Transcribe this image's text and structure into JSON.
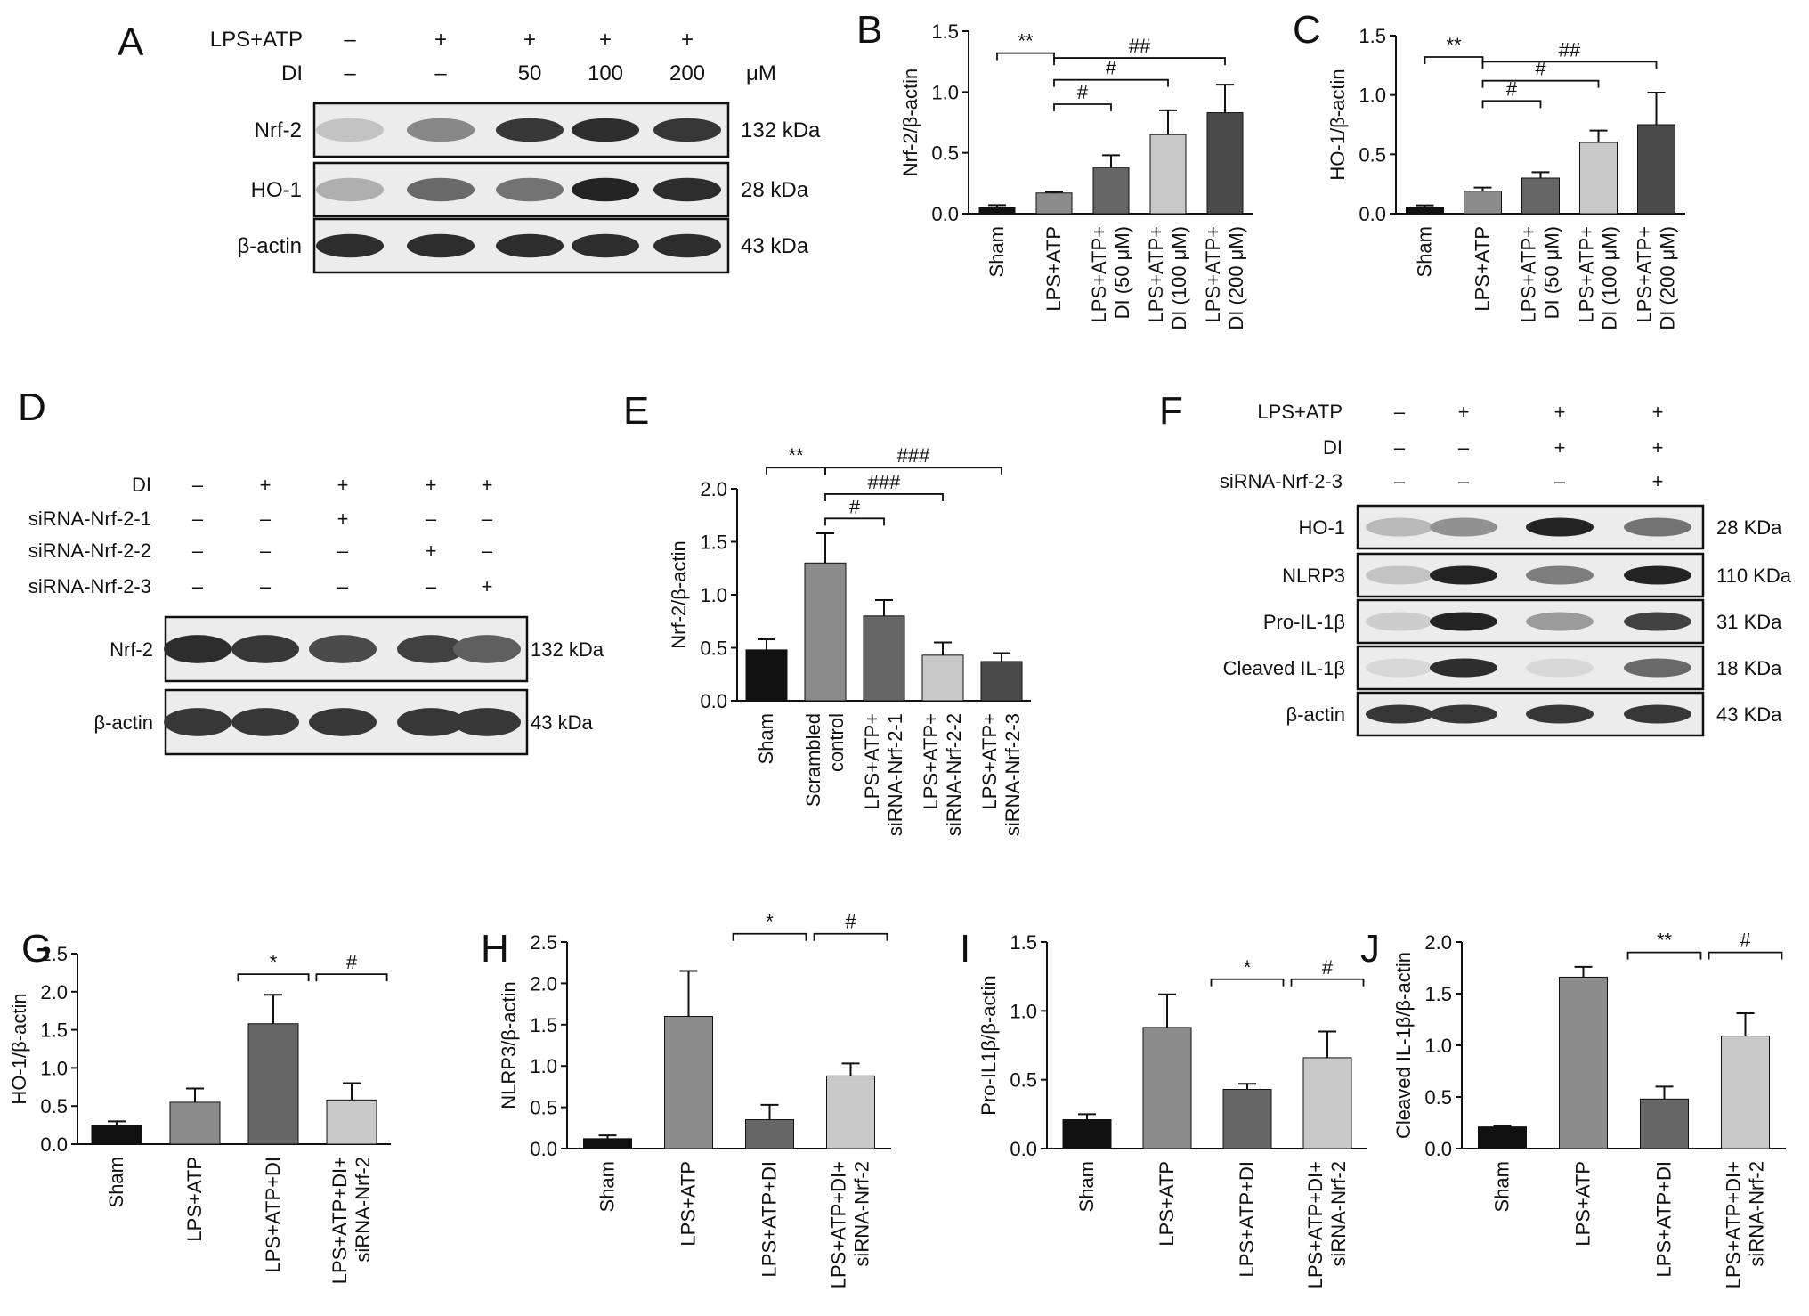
{
  "colors": {
    "black": "#111111",
    "gray1": "#8c8c8c",
    "gray2": "#666666",
    "gray3": "#c8c8c8",
    "gray4": "#4a4a4a"
  },
  "panelA": {
    "letter": "A",
    "header_rows": [
      {
        "label": "LPS+ATP",
        "marks": [
          "–",
          "+",
          "+",
          "+",
          "+"
        ]
      },
      {
        "label": "DI",
        "marks": [
          "–",
          "–",
          "50",
          "100",
          "200"
        ],
        "unit": "μM"
      }
    ],
    "blots": [
      {
        "label": "Nrf-2",
        "kda": "132 kDa",
        "intensity": [
          0.15,
          0.45,
          0.85,
          0.9,
          0.85
        ]
      },
      {
        "label": "HO-1",
        "kda": "28 kDa",
        "intensity": [
          0.25,
          0.6,
          0.55,
          0.95,
          0.9
        ]
      },
      {
        "label": "β-actin",
        "kda": "43 kDa",
        "intensity": [
          0.9,
          0.9,
          0.9,
          0.9,
          0.9
        ]
      }
    ]
  },
  "panelD": {
    "letter": "D",
    "header_rows": [
      {
        "label": "DI",
        "marks": [
          "–",
          "+",
          "+",
          "+",
          "+"
        ]
      },
      {
        "label": "siRNA-Nrf-2-1",
        "marks": [
          "–",
          "–",
          "+",
          "–",
          "–"
        ]
      },
      {
        "label": "siRNA-Nrf-2-2",
        "marks": [
          "–",
          "–",
          "–",
          "+",
          "–"
        ]
      },
      {
        "label": "siRNA-Nrf-2-3",
        "marks": [
          "–",
          "–",
          "–",
          "–",
          "+"
        ]
      }
    ],
    "blots": [
      {
        "label": "Nrf-2",
        "kda": "132 kDa",
        "intensity": [
          0.9,
          0.85,
          0.75,
          0.8,
          0.65
        ]
      },
      {
        "label": "β-actin",
        "kda": "43 kDa",
        "intensity": [
          0.85,
          0.85,
          0.85,
          0.85,
          0.85
        ]
      }
    ]
  },
  "panelF": {
    "letter": "F",
    "header_rows": [
      {
        "label": "LPS+ATP",
        "marks": [
          "–",
          "+",
          "+",
          "+"
        ]
      },
      {
        "label": "DI",
        "marks": [
          "–",
          "–",
          "+",
          "+"
        ]
      },
      {
        "label": "siRNA-Nrf-2-3",
        "marks": [
          "–",
          "–",
          "–",
          "+"
        ]
      }
    ],
    "blots": [
      {
        "label": "HO-1",
        "kda": "28 KDa",
        "intensity": [
          0.2,
          0.4,
          0.95,
          0.55
        ]
      },
      {
        "label": "NLRP3",
        "kda": "110 KDa",
        "intensity": [
          0.15,
          0.95,
          0.5,
          0.95
        ]
      },
      {
        "label": "Pro-IL-1β",
        "kda": "31 KDa",
        "intensity": [
          0.1,
          0.95,
          0.35,
          0.8
        ]
      },
      {
        "label": "Cleaved IL-1β",
        "kda": "18 KDa",
        "intensity": [
          0.05,
          0.9,
          0.05,
          0.6
        ]
      },
      {
        "label": "β-actin",
        "kda": "43 KDa",
        "intensity": [
          0.85,
          0.85,
          0.85,
          0.85
        ]
      }
    ]
  },
  "chart_data": [
    {
      "panel": "B",
      "type": "bar",
      "ylabel": "Nrf-2/β-actin",
      "ylim": [
        0,
        1.5
      ],
      "yticks": [
        "0.0",
        "0.5",
        "1.0",
        "1.5"
      ],
      "categories": [
        [
          "Sham"
        ],
        [
          "LPS+ATP"
        ],
        [
          "LPS+ATP+",
          "DI (50 μM)"
        ],
        [
          "LPS+ATP+",
          "DI (100 μM)"
        ],
        [
          "LPS+ATP+",
          "DI (200 μM)"
        ]
      ],
      "values": [
        0.05,
        0.17,
        0.38,
        0.65,
        0.83
      ],
      "errors": [
        0.02,
        0.01,
        0.1,
        0.2,
        0.23
      ],
      "bar_colors": [
        "#111111",
        "#8c8c8c",
        "#666666",
        "#c8c8c8",
        "#4a4a4a"
      ],
      "sig": [
        {
          "from": 0,
          "to": 1,
          "label": "**",
          "y": 1.32
        },
        {
          "from": 1,
          "to": 2,
          "label": "#",
          "y": 0.9
        },
        {
          "from": 1,
          "to": 3,
          "label": "#",
          "y": 1.1
        },
        {
          "from": 1,
          "to": 4,
          "label": "##",
          "y": 1.28
        }
      ]
    },
    {
      "panel": "C",
      "type": "bar",
      "ylabel": "HO-1/β-actin",
      "ylim": [
        0,
        1.5
      ],
      "yticks": [
        "0.0",
        "0.5",
        "1.0",
        "1.5"
      ],
      "categories": [
        [
          "Sham"
        ],
        [
          "LPS+ATP"
        ],
        [
          "LPS+ATP+",
          "DI (50 μM)"
        ],
        [
          "LPS+ATP+",
          "DI (100 μM)"
        ],
        [
          "LPS+ATP+",
          "DI (200 μM)"
        ]
      ],
      "values": [
        0.05,
        0.19,
        0.3,
        0.6,
        0.75
      ],
      "errors": [
        0.02,
        0.03,
        0.05,
        0.1,
        0.27
      ],
      "bar_colors": [
        "#111111",
        "#8c8c8c",
        "#666666",
        "#c8c8c8",
        "#4a4a4a"
      ],
      "sig": [
        {
          "from": 0,
          "to": 1,
          "label": "**",
          "y": 1.32
        },
        {
          "from": 1,
          "to": 2,
          "label": "#",
          "y": 0.95
        },
        {
          "from": 1,
          "to": 3,
          "label": "#",
          "y": 1.12
        },
        {
          "from": 1,
          "to": 4,
          "label": "##",
          "y": 1.28
        }
      ]
    },
    {
      "panel": "E",
      "type": "bar",
      "ylabel": "Nrf-2/β-actin",
      "ylim": [
        0,
        2.0
      ],
      "yticks": [
        "0.0",
        "0.5",
        "1.0",
        "1.5",
        "2.0"
      ],
      "categories": [
        [
          "Sham"
        ],
        [
          "Scrambled",
          "control"
        ],
        [
          "LPS+ATP+",
          "siRNA-Nrf-2-1"
        ],
        [
          "LPS+ATP+",
          "siRNA-Nrf-2-2"
        ],
        [
          "LPS+ATP+",
          "siRNA-Nrf-2-3"
        ]
      ],
      "values": [
        0.48,
        1.3,
        0.8,
        0.43,
        0.37
      ],
      "errors": [
        0.1,
        0.28,
        0.15,
        0.12,
        0.08
      ],
      "bar_colors": [
        "#111111",
        "#8c8c8c",
        "#666666",
        "#c8c8c8",
        "#4a4a4a"
      ],
      "sig": [
        {
          "from": 0,
          "to": 1,
          "label": "**",
          "y": 2.2
        },
        {
          "from": 1,
          "to": 2,
          "label": "#",
          "y": 1.72
        },
        {
          "from": 1,
          "to": 3,
          "label": "###",
          "y": 1.95
        },
        {
          "from": 1,
          "to": 4,
          "label": "###",
          "y": 2.2
        }
      ]
    },
    {
      "panel": "G",
      "type": "bar",
      "ylabel": "HO-1/β-actin",
      "ylim": [
        0,
        2.5
      ],
      "yticks": [
        "0.0",
        "0.5",
        "1.0",
        "1.5",
        "2.0",
        "2.5"
      ],
      "categories": [
        [
          "Sham"
        ],
        [
          "LPS+ATP"
        ],
        [
          "LPS+ATP+DI"
        ],
        [
          "LPS+ATP+DI+",
          "siRNA-Nrf-2"
        ]
      ],
      "values": [
        0.25,
        0.55,
        1.58,
        0.58
      ],
      "errors": [
        0.05,
        0.18,
        0.38,
        0.22
      ],
      "bar_colors": [
        "#111111",
        "#8c8c8c",
        "#666666",
        "#c8c8c8"
      ],
      "sig": [
        {
          "from": 1.55,
          "to": 2.45,
          "label": "*",
          "y": 2.23
        },
        {
          "from": 2.55,
          "to": 3.45,
          "label": "#",
          "y": 2.23
        }
      ]
    },
    {
      "panel": "H",
      "type": "bar",
      "ylabel": "NLRP3/β-actin",
      "ylim": [
        0,
        2.5
      ],
      "yticks": [
        "0.0",
        "0.5",
        "1.0",
        "1.5",
        "2.0",
        "2.5"
      ],
      "categories": [
        [
          "Sham"
        ],
        [
          "LPS+ATP"
        ],
        [
          "LPS+ATP+DI"
        ],
        [
          "LPS+ATP+DI+",
          "siRNA-Nrf-2"
        ]
      ],
      "values": [
        0.12,
        1.6,
        0.35,
        0.88
      ],
      "errors": [
        0.04,
        0.55,
        0.18,
        0.15
      ],
      "bar_colors": [
        "#111111",
        "#8c8c8c",
        "#666666",
        "#c8c8c8"
      ],
      "sig": [
        {
          "from": 1.55,
          "to": 2.45,
          "label": "*",
          "y": 2.6
        },
        {
          "from": 2.55,
          "to": 3.45,
          "label": "#",
          "y": 2.6
        }
      ]
    },
    {
      "panel": "I",
      "type": "bar",
      "ylabel": "Pro-IL1β/β-actin",
      "ylim": [
        0,
        1.5
      ],
      "yticks": [
        "0.0",
        "0.5",
        "1.0",
        "1.5"
      ],
      "categories": [
        [
          "Sham"
        ],
        [
          "LPS+ATP"
        ],
        [
          "LPS+ATP+DI"
        ],
        [
          "LPS+ATP+DI+",
          "siRNA-Nrf-2"
        ]
      ],
      "values": [
        0.21,
        0.88,
        0.43,
        0.66
      ],
      "errors": [
        0.04,
        0.24,
        0.04,
        0.19
      ],
      "bar_colors": [
        "#111111",
        "#8c8c8c",
        "#666666",
        "#c8c8c8"
      ],
      "sig": [
        {
          "from": 1.55,
          "to": 2.45,
          "label": "*",
          "y": 1.23
        },
        {
          "from": 2.55,
          "to": 3.45,
          "label": "#",
          "y": 1.23
        }
      ]
    },
    {
      "panel": "J",
      "type": "bar",
      "ylabel": "Cleaved IL-1β/β-actin",
      "ylim": [
        0,
        2.0
      ],
      "yticks": [
        "0.0",
        "0.5",
        "1.0",
        "1.5",
        "2.0"
      ],
      "categories": [
        [
          "Sham"
        ],
        [
          "LPS+ATP"
        ],
        [
          "LPS+ATP+DI"
        ],
        [
          "LPS+ATP+DI+",
          "siRNA-Nrf-2"
        ]
      ],
      "values": [
        0.21,
        1.66,
        0.48,
        1.09
      ],
      "errors": [
        0.01,
        0.1,
        0.12,
        0.22
      ],
      "bar_colors": [
        "#111111",
        "#8c8c8c",
        "#666666",
        "#c8c8c8"
      ],
      "sig": [
        {
          "from": 1.55,
          "to": 2.45,
          "label": "**",
          "y": 1.9
        },
        {
          "from": 2.55,
          "to": 3.45,
          "label": "#",
          "y": 1.9
        }
      ]
    }
  ]
}
